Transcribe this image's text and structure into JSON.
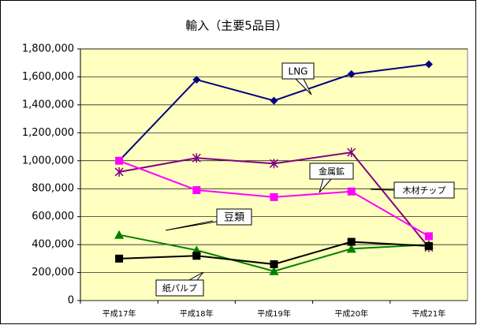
{
  "chart_data": {
    "type": "line",
    "title": "輸入（主要5品目）",
    "categories": [
      "平成17年",
      "平成18年",
      "平成19年",
      "平成20年",
      "平成21年"
    ],
    "series": [
      {
        "name": "LNG",
        "color": "#000080",
        "marker": "diamond",
        "values": [
          1000000,
          1580000,
          1430000,
          1620000,
          1690000
        ]
      },
      {
        "name": "金属鉱",
        "color": "#800080",
        "marker": "star",
        "values": [
          920000,
          1020000,
          980000,
          1060000,
          380000
        ]
      },
      {
        "name": "木材チップ",
        "color": "#ff00ff",
        "marker": "square",
        "values": [
          1000000,
          790000,
          740000,
          780000,
          460000
        ]
      },
      {
        "name": "豆類",
        "color": "#008000",
        "marker": "triangle",
        "values": [
          470000,
          360000,
          210000,
          370000,
          400000
        ]
      },
      {
        "name": "紙パルプ",
        "color": "#000000",
        "marker": "square",
        "values": [
          300000,
          320000,
          260000,
          420000,
          390000
        ]
      }
    ],
    "ylim": [
      0,
      1800000
    ],
    "yticks": [
      0,
      {
        "value": 200000,
        "label": "200,000"
      },
      {
        "value": 400000,
        "label": "400,000"
      },
      {
        "value": 600000,
        "label": "600,000"
      },
      {
        "value": 800000,
        "label": "800,000"
      },
      {
        "value": 1000000,
        "label": "1,000,000"
      },
      {
        "value": 1200000,
        "label": "1,200,000"
      },
      {
        "value": 1400000,
        "label": "1,400,000"
      },
      {
        "value": 1600000,
        "label": "1,600,000"
      },
      {
        "value": 1800000,
        "label": "1,800,000"
      }
    ],
    "grid": true
  }
}
